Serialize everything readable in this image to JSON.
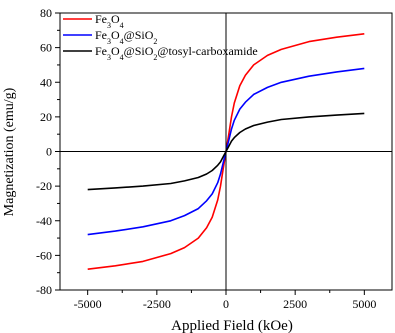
{
  "chart_data": {
    "type": "line",
    "xlabel": "Applied Field (kOe)",
    "ylabel": "Magnetization (emu/g)",
    "xlim": [
      -6000,
      6000
    ],
    "ylim": [
      -80,
      80
    ],
    "xticks": [
      -5000,
      -2500,
      0,
      2500,
      5000
    ],
    "yticks": [
      -80,
      -60,
      -40,
      -20,
      0,
      20,
      40,
      60,
      80
    ],
    "xtick_labels": [
      "-5000",
      "-2500",
      "0",
      "2500",
      "5000"
    ],
    "ytick_labels": [
      "-80",
      "-60",
      "-40",
      "-20",
      "0",
      "20",
      "40",
      "60",
      "80"
    ],
    "grid": false,
    "legend_position": "top-left",
    "series": [
      {
        "name": "Fe3O4",
        "legend_parts": [
          {
            "t": "Fe",
            "sub": false
          },
          {
            "t": "3",
            "sub": true
          },
          {
            "t": "O",
            "sub": false
          },
          {
            "t": "4",
            "sub": true
          }
        ],
        "color": "#ff0000",
        "x": [
          -5000,
          -4000,
          -3000,
          -2000,
          -1500,
          -1000,
          -700,
          -500,
          -300,
          -200,
          -100,
          0,
          100,
          200,
          300,
          500,
          700,
          1000,
          1500,
          2000,
          3000,
          4000,
          5000
        ],
        "y": [
          -68,
          -66,
          -63.5,
          -59,
          -55.5,
          -50,
          -44,
          -38,
          -28,
          -20,
          -10,
          0,
          10,
          20,
          28,
          38,
          44,
          50,
          55.5,
          59,
          63.5,
          66,
          68
        ]
      },
      {
        "name": "Fe3O4@SiO2",
        "legend_parts": [
          {
            "t": "Fe",
            "sub": false
          },
          {
            "t": "3",
            "sub": true
          },
          {
            "t": "O",
            "sub": false
          },
          {
            "t": "4",
            "sub": true
          },
          {
            "t": "@SiO",
            "sub": false
          },
          {
            "t": "2",
            "sub": true
          }
        ],
        "color": "#0000ff",
        "x": [
          -5000,
          -4000,
          -3000,
          -2000,
          -1500,
          -1000,
          -700,
          -500,
          -300,
          -200,
          -100,
          0,
          100,
          200,
          300,
          500,
          700,
          1000,
          1500,
          2000,
          3000,
          4000,
          5000
        ],
        "y": [
          -48,
          -46,
          -43.5,
          -40,
          -37,
          -33,
          -28.5,
          -24.5,
          -18,
          -13,
          -6.5,
          0,
          6.5,
          13,
          18,
          24.5,
          28.5,
          33,
          37,
          40,
          43.5,
          46,
          48
        ]
      },
      {
        "name": "Fe3O4@SiO2@tosyl-carboxamide",
        "legend_parts": [
          {
            "t": "Fe",
            "sub": false
          },
          {
            "t": "3",
            "sub": true
          },
          {
            "t": "O",
            "sub": false
          },
          {
            "t": "4",
            "sub": true
          },
          {
            "t": "@SiO",
            "sub": false
          },
          {
            "t": "2",
            "sub": true
          },
          {
            "t": "@tosyl-carboxamide",
            "sub": false
          }
        ],
        "color": "#000000",
        "x": [
          -5000,
          -4000,
          -3000,
          -2000,
          -1500,
          -1000,
          -700,
          -500,
          -300,
          -200,
          -100,
          0,
          100,
          200,
          300,
          500,
          700,
          1000,
          1500,
          2000,
          3000,
          4000,
          5000
        ],
        "y": [
          -22,
          -21,
          -20,
          -18.5,
          -17,
          -15,
          -13,
          -11,
          -8,
          -6,
          -3,
          0,
          3,
          6,
          8,
          11,
          13,
          15,
          17,
          18.5,
          20,
          21,
          22
        ]
      }
    ]
  }
}
